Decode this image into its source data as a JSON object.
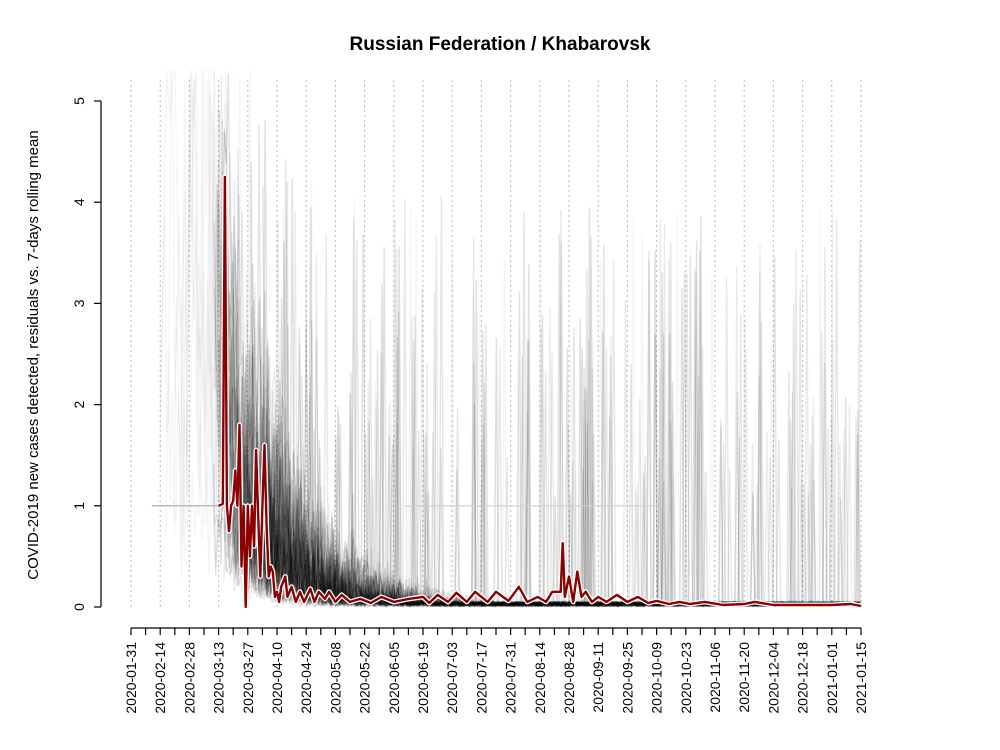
{
  "chart_data": {
    "type": "line",
    "title": "Russian Federation / Khabarovsk",
    "ylabel": "COVID-2019 new cases detected, residuals vs. 7-days rolling mean",
    "xlabel": "",
    "ylim": [
      0,
      5
    ],
    "yticks": [
      "0",
      "1",
      "2",
      "3",
      "4",
      "5"
    ],
    "xlim": [
      "2020-01-31",
      "2021-01-15"
    ],
    "xticks": [
      "2020-01-31",
      "2020-02-14",
      "2020-02-28",
      "2020-03-13",
      "2020-03-27",
      "2020-04-10",
      "2020-04-24",
      "2020-05-08",
      "2020-05-22",
      "2020-06-05",
      "2020-06-19",
      "2020-07-03",
      "2020-07-17",
      "2020-07-31",
      "2020-08-14",
      "2020-08-28",
      "2020-09-11",
      "2020-09-25",
      "2020-10-09",
      "2020-10-23",
      "2020-11-06",
      "2020-11-20",
      "2020-12-04",
      "2020-12-18",
      "2021-01-01",
      "2021-01-15"
    ],
    "grid": "vertical dotted at every 14 days",
    "colors": {
      "highlight": "#8b0000",
      "background_series": "#000000"
    },
    "series": [
      {
        "role": "highlighted region",
        "points": [
          [
            "2020-03-13",
            1.0
          ],
          [
            "2020-03-15",
            1.02
          ],
          [
            "2020-03-16",
            4.25
          ],
          [
            "2020-03-17",
            1.0
          ],
          [
            "2020-03-18",
            0.75
          ],
          [
            "2020-03-19",
            1.0
          ],
          [
            "2020-03-20",
            1.05
          ],
          [
            "2020-03-21",
            1.35
          ],
          [
            "2020-03-22",
            1.0
          ],
          [
            "2020-03-23",
            1.8
          ],
          [
            "2020-03-24",
            0.4
          ],
          [
            "2020-03-25",
            1.0
          ],
          [
            "2020-03-26",
            0.0
          ],
          [
            "2020-03-27",
            1.0
          ],
          [
            "2020-03-28",
            0.5
          ],
          [
            "2020-03-29",
            1.0
          ],
          [
            "2020-03-30",
            0.6
          ],
          [
            "2020-03-31",
            1.55
          ],
          [
            "2020-04-01",
            0.9
          ],
          [
            "2020-04-02",
            0.3
          ],
          [
            "2020-04-03",
            1.0
          ],
          [
            "2020-04-04",
            1.6
          ],
          [
            "2020-04-05",
            0.8
          ],
          [
            "2020-04-06",
            0.3
          ],
          [
            "2020-04-07",
            0.4
          ],
          [
            "2020-04-08",
            0.35
          ],
          [
            "2020-04-09",
            0.1
          ],
          [
            "2020-04-10",
            0.15
          ],
          [
            "2020-04-11",
            0.05
          ],
          [
            "2020-04-12",
            0.2
          ],
          [
            "2020-04-14",
            0.3
          ],
          [
            "2020-04-15",
            0.1
          ],
          [
            "2020-04-17",
            0.2
          ],
          [
            "2020-04-19",
            0.05
          ],
          [
            "2020-04-21",
            0.15
          ],
          [
            "2020-04-23",
            0.05
          ],
          [
            "2020-04-26",
            0.18
          ],
          [
            "2020-04-28",
            0.05
          ],
          [
            "2020-04-30",
            0.15
          ],
          [
            "2020-05-03",
            0.08
          ],
          [
            "2020-05-05",
            0.15
          ],
          [
            "2020-05-08",
            0.05
          ],
          [
            "2020-05-11",
            0.12
          ],
          [
            "2020-05-15",
            0.05
          ],
          [
            "2020-05-20",
            0.08
          ],
          [
            "2020-05-25",
            0.04
          ],
          [
            "2020-05-30",
            0.1
          ],
          [
            "2020-06-05",
            0.05
          ],
          [
            "2020-06-12",
            0.08
          ],
          [
            "2020-06-19",
            0.1
          ],
          [
            "2020-06-22",
            0.04
          ],
          [
            "2020-06-26",
            0.12
          ],
          [
            "2020-07-01",
            0.05
          ],
          [
            "2020-07-05",
            0.14
          ],
          [
            "2020-07-10",
            0.05
          ],
          [
            "2020-07-14",
            0.15
          ],
          [
            "2020-07-20",
            0.05
          ],
          [
            "2020-07-24",
            0.15
          ],
          [
            "2020-07-30",
            0.06
          ],
          [
            "2020-08-04",
            0.2
          ],
          [
            "2020-08-08",
            0.05
          ],
          [
            "2020-08-13",
            0.1
          ],
          [
            "2020-08-17",
            0.05
          ],
          [
            "2020-08-20",
            0.15
          ],
          [
            "2020-08-24",
            0.15
          ],
          [
            "2020-08-25",
            0.63
          ],
          [
            "2020-08-26",
            0.1
          ],
          [
            "2020-08-28",
            0.3
          ],
          [
            "2020-08-30",
            0.05
          ],
          [
            "2020-09-01",
            0.35
          ],
          [
            "2020-09-03",
            0.1
          ],
          [
            "2020-09-05",
            0.15
          ],
          [
            "2020-09-08",
            0.05
          ],
          [
            "2020-09-11",
            0.1
          ],
          [
            "2020-09-15",
            0.05
          ],
          [
            "2020-09-20",
            0.12
          ],
          [
            "2020-09-25",
            0.05
          ],
          [
            "2020-09-30",
            0.1
          ],
          [
            "2020-10-05",
            0.04
          ],
          [
            "2020-10-09",
            0.06
          ],
          [
            "2020-10-15",
            0.03
          ],
          [
            "2020-10-20",
            0.05
          ],
          [
            "2020-10-25",
            0.03
          ],
          [
            "2020-11-01",
            0.05
          ],
          [
            "2020-11-10",
            0.02
          ],
          [
            "2020-11-20",
            0.03
          ],
          [
            "2020-11-25",
            0.05
          ],
          [
            "2020-12-04",
            0.02
          ],
          [
            "2020-12-15",
            0.02
          ],
          [
            "2021-01-01",
            0.02
          ],
          [
            "2021-01-10",
            0.03
          ],
          [
            "2021-01-15",
            0.01
          ]
        ]
      }
    ]
  }
}
